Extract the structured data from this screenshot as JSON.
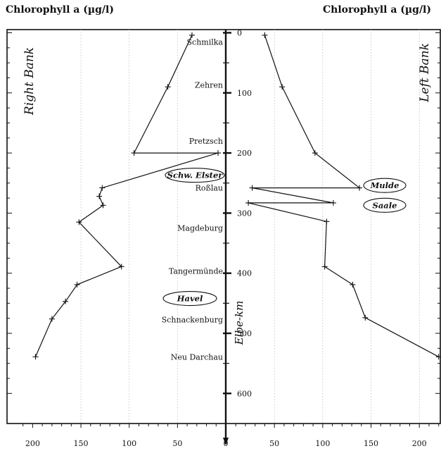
{
  "chart_data": {
    "type": "line",
    "titles": {
      "left": "Chlorophyll a (µg/l)",
      "right": "Chlorophyll a (µg/l)"
    },
    "bank_labels": {
      "right_bank": "Right Bank",
      "left_bank": "Left Bank"
    },
    "axis_label": "Elbe-km",
    "y_axis": {
      "range": [
        -10,
        610
      ],
      "ticks": [
        0,
        100,
        200,
        300,
        400,
        500,
        600
      ],
      "inverted": true
    },
    "left_panel_axis": {
      "range": [
        210,
        0
      ],
      "ticks": [
        200,
        150,
        100,
        50,
        0
      ]
    },
    "right_panel_axis": {
      "range": [
        0,
        220
      ],
      "ticks": [
        0,
        50,
        100,
        150,
        200
      ]
    },
    "grid": {
      "vertical_dotted": true
    },
    "series": [
      {
        "side": "right-bank",
        "points": [
          {
            "km": 4,
            "value": 35
          },
          {
            "km": 90,
            "value": 60
          },
          {
            "km": 200,
            "value": 95
          },
          {
            "km": 200,
            "value": 8
          },
          {
            "km": 258,
            "value": 128
          },
          {
            "km": 272,
            "value": 131
          },
          {
            "km": 287,
            "value": 127
          },
          {
            "km": 315,
            "value": 152
          },
          {
            "km": 389,
            "value": 108
          },
          {
            "km": 419,
            "value": 154
          },
          {
            "km": 447,
            "value": 166
          },
          {
            "km": 476,
            "value": 180
          },
          {
            "km": 539,
            "value": 197
          }
        ]
      },
      {
        "side": "left-bank",
        "points": [
          {
            "km": 4,
            "value": 40
          },
          {
            "km": 90,
            "value": 58
          },
          {
            "km": 200,
            "value": 92
          },
          {
            "km": 258,
            "value": 138
          },
          {
            "km": 258,
            "value": 27
          },
          {
            "km": 283,
            "value": 111
          },
          {
            "km": 283,
            "value": 23
          },
          {
            "km": 314,
            "value": 104
          },
          {
            "km": 389,
            "value": 102
          },
          {
            "km": 419,
            "value": 131
          },
          {
            "km": 474,
            "value": 144
          },
          {
            "km": 539,
            "value": 220
          }
        ]
      }
    ],
    "station_labels": [
      {
        "name": "Schmilka",
        "km": 15
      },
      {
        "name": "Zehren",
        "km": 87
      },
      {
        "name": "Pretzsch",
        "km": 180
      },
      {
        "name": "Roßlau",
        "km": 258
      },
      {
        "name": "Magdeburg",
        "km": 325
      },
      {
        "name": "Tangermünde",
        "km": 396
      },
      {
        "name": "Schnackenburg",
        "km": 477
      },
      {
        "name": "Neu Darchau",
        "km": 539
      }
    ],
    "tributaries": [
      {
        "name": "Schw. Elster",
        "km": 237,
        "side": "center"
      },
      {
        "name": "Havel",
        "km": 442,
        "side": "right-bank"
      },
      {
        "name": "Mulde",
        "km": 254,
        "side": "left-bank"
      },
      {
        "name": "Saale",
        "km": 287,
        "side": "left-bank"
      }
    ]
  }
}
